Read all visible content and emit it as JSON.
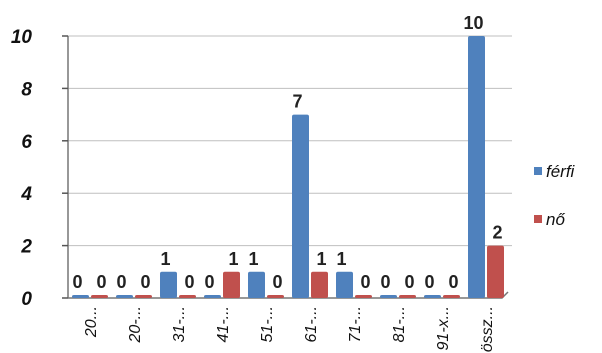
{
  "chart_data": {
    "type": "bar",
    "categories": [
      "20...",
      "20-...",
      "31-...",
      "41-...",
      "51-...",
      "61-...",
      "71-...",
      "81-...",
      "91-x...",
      "össz..."
    ],
    "series": [
      {
        "name": "férfi",
        "values": [
          0,
          0,
          1,
          0,
          1,
          7,
          1,
          0,
          0,
          10
        ],
        "color": "#4f81bd"
      },
      {
        "name": "nő",
        "values": [
          0,
          0,
          0,
          1,
          0,
          1,
          0,
          0,
          0,
          2
        ],
        "color": "#c0504d"
      }
    ],
    "y_ticks": [
      "0",
      "2",
      "4",
      "6",
      "8",
      "10"
    ],
    "ylim": [
      0,
      10
    ],
    "legend_position": "right",
    "grid": true
  }
}
